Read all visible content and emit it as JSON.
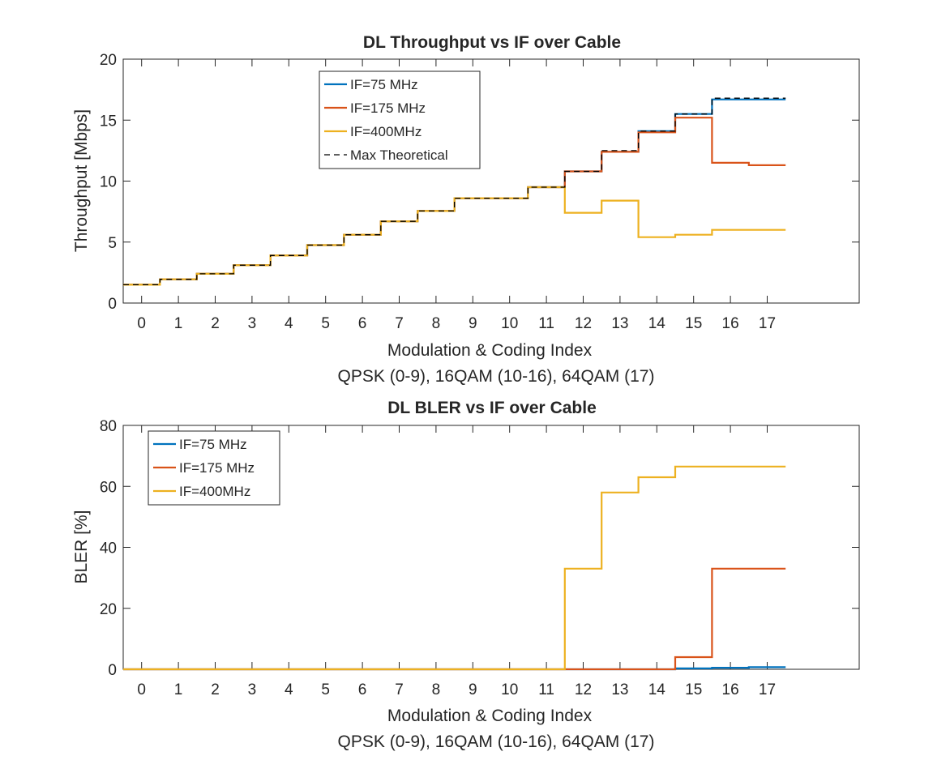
{
  "colors": {
    "if75": "#0072BD",
    "if175": "#D95319",
    "if400": "#EDB120",
    "theory": "#000000"
  },
  "chart_data": [
    {
      "type": "line",
      "title": "DL Throughput vs IF over Cable",
      "xlabel": "Modulation & Coding Index",
      "xlabel2": "QPSK (0-9), 16QAM (10-16), 64QAM (17)",
      "ylabel": "Throughput [Mbps]",
      "xlim": [
        -0.5,
        19.5
      ],
      "ylim": [
        0,
        20
      ],
      "xticks": [
        "0",
        "1",
        "2",
        "3",
        "4",
        "5",
        "6",
        "7",
        "8",
        "9",
        "10",
        "11",
        "12",
        "13",
        "14",
        "15",
        "16",
        "17"
      ],
      "yticks": [
        "0",
        "5",
        "10",
        "15",
        "20"
      ],
      "legend_position": "top-center",
      "x": [
        0,
        1,
        2,
        3,
        4,
        5,
        6,
        7,
        8,
        9,
        10,
        11,
        12,
        13,
        14,
        15,
        16,
        17
      ],
      "series": [
        {
          "name": "IF=75 MHz",
          "style": "solid",
          "values": [
            1.5,
            1.95,
            2.4,
            3.1,
            3.9,
            4.75,
            5.6,
            6.7,
            7.55,
            8.6,
            8.6,
            9.5,
            10.8,
            12.4,
            14.1,
            15.5,
            16.7,
            16.7
          ]
        },
        {
          "name": "IF=175 MHz",
          "style": "solid",
          "values": [
            1.5,
            1.95,
            2.4,
            3.1,
            3.9,
            4.75,
            5.6,
            6.7,
            7.55,
            8.6,
            8.6,
            9.5,
            10.8,
            12.4,
            14.0,
            15.2,
            11.5,
            11.3
          ]
        },
        {
          "name": "IF=400MHz",
          "style": "solid",
          "values": [
            1.5,
            1.95,
            2.4,
            3.1,
            3.9,
            4.75,
            5.6,
            6.7,
            7.55,
            8.6,
            8.6,
            9.5,
            7.4,
            8.4,
            5.4,
            5.6,
            6.0,
            6.0
          ]
        },
        {
          "name": "Max Theoretical",
          "style": "dashed",
          "values": [
            1.5,
            1.95,
            2.4,
            3.1,
            3.9,
            4.75,
            5.6,
            6.7,
            7.55,
            8.6,
            8.6,
            9.5,
            10.8,
            12.5,
            14.1,
            15.5,
            16.8,
            16.8
          ]
        }
      ]
    },
    {
      "type": "line",
      "title": "DL BLER vs IF over Cable",
      "xlabel": "Modulation & Coding Index",
      "xlabel2": "QPSK (0-9), 16QAM (10-16), 64QAM (17)",
      "ylabel": "BLER [%]",
      "xlim": [
        -0.5,
        19.5
      ],
      "ylim": [
        0,
        80
      ],
      "xticks": [
        "0",
        "1",
        "2",
        "3",
        "4",
        "5",
        "6",
        "7",
        "8",
        "9",
        "10",
        "11",
        "12",
        "13",
        "14",
        "15",
        "16",
        "17"
      ],
      "yticks": [
        "0",
        "20",
        "40",
        "60",
        "80"
      ],
      "legend_position": "top-left",
      "x": [
        0,
        1,
        2,
        3,
        4,
        5,
        6,
        7,
        8,
        9,
        10,
        11,
        12,
        13,
        14,
        15,
        16,
        17
      ],
      "series": [
        {
          "name": "IF=75 MHz",
          "style": "solid",
          "values": [
            0,
            0,
            0,
            0,
            0,
            0,
            0,
            0,
            0,
            0,
            0,
            0,
            0,
            0,
            0,
            0.3,
            0.5,
            0.7
          ]
        },
        {
          "name": "IF=175 MHz",
          "style": "solid",
          "values": [
            0,
            0,
            0,
            0,
            0,
            0,
            0,
            0,
            0,
            0,
            0,
            0,
            0,
            0,
            0,
            4,
            33,
            33
          ]
        },
        {
          "name": "IF=400MHz",
          "style": "solid",
          "values": [
            0,
            0,
            0,
            0,
            0,
            0,
            0,
            0,
            0,
            0,
            0,
            0,
            33,
            58,
            63,
            66.5,
            66.5,
            66.5
          ]
        }
      ]
    }
  ]
}
